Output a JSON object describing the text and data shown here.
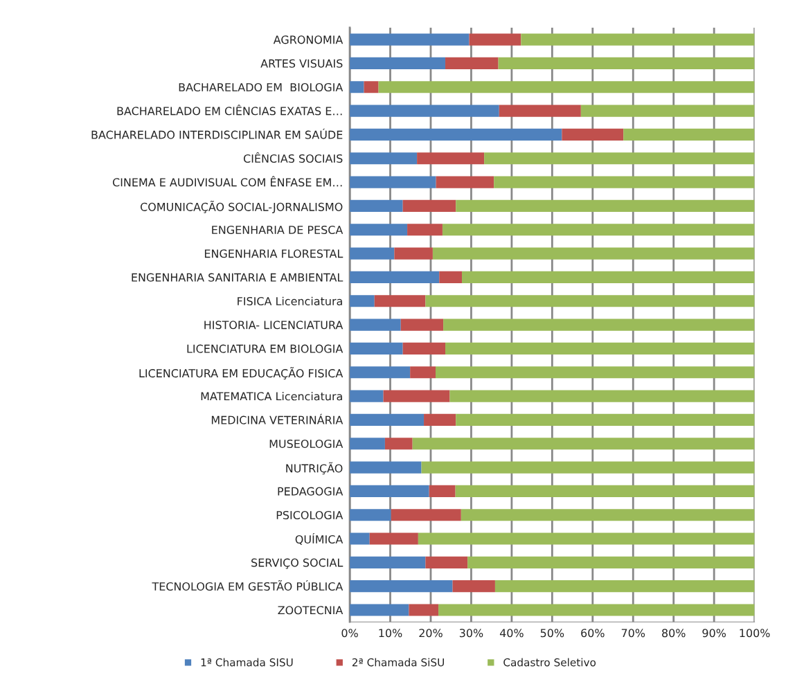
{
  "chart_data": {
    "type": "bar",
    "orientation": "horizontal",
    "stacked": true,
    "categories": [
      "AGRONOMIA",
      "ARTES VISUAIS",
      "BACHARELADO EM  BIOLOGIA",
      "BACHARELADO EM CIÊNCIAS EXATAS E…",
      "BACHARELADO INTERDISCIPLINAR EM SAÚDE",
      "CIÊNCIAS SOCIAIS",
      "CINEMA E AUDIVISUAL COM ÊNFASE EM…",
      "COMUNICAÇÃO SOCIAL-JORNALISMO",
      "ENGENHARIA DE PESCA",
      "ENGENHARIA FLORESTAL",
      "ENGENHARIA SANITARIA E AMBIENTAL",
      "FISICA Licenciatura",
      "HISTORIA- LICENCIATURA",
      "LICENCIATURA EM BIOLOGIA",
      "LICENCIATURA EM EDUCAÇÃO FISICA",
      "MATEMATICA Licenciatura",
      "MEDICINA VETERINÁRIA",
      "MUSEOLOGIA",
      "NUTRIÇÃO",
      "PEDAGOGIA",
      "PSICOLOGIA",
      "QUÍMICA",
      "SERVIÇO SOCIAL",
      "TECNOLOGIA EM GESTÃO PÚBLICA",
      "ZOOTECNIA"
    ],
    "series": [
      {
        "name": "1ª Chamada SISU",
        "color": "#4f81bd",
        "values": [
          29.5,
          23.6,
          3.5,
          36.9,
          52.4,
          16.6,
          21.3,
          13.1,
          14.2,
          11.0,
          22.1,
          6.1,
          12.6,
          13.1,
          14.9,
          8.3,
          18.3,
          8.7,
          17.7,
          19.6,
          10.2,
          4.9,
          18.7,
          25.4,
          14.6
        ]
      },
      {
        "name": "2ª Chamada SiSU",
        "color": "#c0504d",
        "values": [
          12.8,
          13.1,
          3.6,
          20.2,
          15.2,
          16.6,
          14.3,
          13.1,
          8.7,
          9.5,
          5.6,
          12.6,
          10.5,
          10.5,
          6.3,
          16.4,
          7.9,
          6.8,
          0,
          6.5,
          17.3,
          12.0,
          10.4,
          10.5,
          7.3
        ]
      },
      {
        "name": "Cadastro Seletivo",
        "color": "#9bbb59",
        "values": [
          57.7,
          63.3,
          92.9,
          42.9,
          32.4,
          66.8,
          64.4,
          73.8,
          77.1,
          79.5,
          72.3,
          81.3,
          76.9,
          76.4,
          78.8,
          75.3,
          73.8,
          84.5,
          82.3,
          73.9,
          72.5,
          83.1,
          70.9,
          64.1,
          78.1
        ]
      }
    ],
    "xlim": [
      0,
      100
    ],
    "xticks": [
      {
        "value": 0,
        "label": "0%"
      },
      {
        "value": 10,
        "label": "10%"
      },
      {
        "value": 20,
        "label": "20%"
      },
      {
        "value": 30,
        "label": "30%"
      },
      {
        "value": 40,
        "label": "40%"
      },
      {
        "value": 50,
        "label": "50%"
      },
      {
        "value": 60,
        "label": "60%"
      },
      {
        "value": 70,
        "label": "70%"
      },
      {
        "value": 80,
        "label": "80%"
      },
      {
        "value": 90,
        "label": "90%"
      },
      {
        "value": 100,
        "label": "100%"
      }
    ],
    "grid": "x",
    "legend": "bottom"
  }
}
